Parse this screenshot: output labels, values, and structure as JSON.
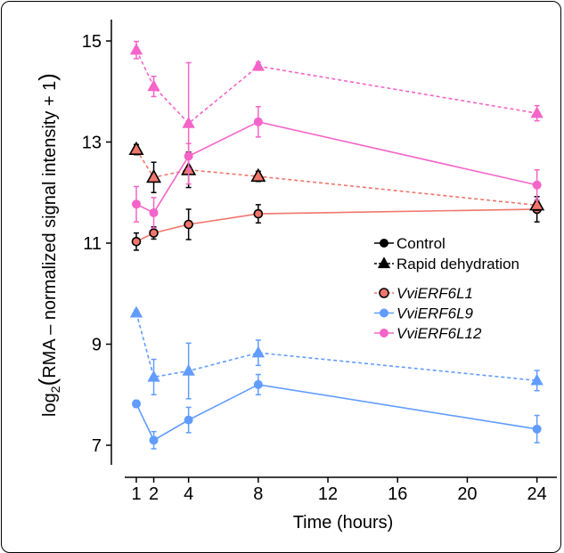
{
  "chart_data": {
    "type": "line",
    "xlabel": "Time (hours)",
    "ylabel_parts": {
      "log": "log",
      "sub": "2",
      "body": "RMA – normalized signal intensity + 1"
    },
    "xlim": [
      0,
      25
    ],
    "ylim": [
      6.6,
      15.3
    ],
    "x_ticks": [
      1,
      2,
      4,
      8,
      12,
      16,
      20,
      24
    ],
    "y_ticks": [
      7,
      9,
      11,
      13,
      15
    ],
    "x_tick_labels": [
      "1",
      "2",
      "4",
      "8",
      "12",
      "16",
      "20",
      "24"
    ],
    "y_tick_labels": [
      "7",
      "9",
      "11",
      "13",
      "15"
    ],
    "grid": false,
    "legend_position": "right-middle",
    "legend_treatments": [
      {
        "name": "Control",
        "marker": "circle",
        "linestyle": "solid"
      },
      {
        "name": "Rapid dehydration",
        "marker": "triangle",
        "linestyle": "dashed"
      }
    ],
    "legend_genes": [
      {
        "name": "VviERF6L1",
        "color": "#F0766C"
      },
      {
        "name": "VviERF6L9",
        "color": "#619CFF"
      },
      {
        "name": "VviERF6L12",
        "color": "#F564C8"
      }
    ],
    "x": [
      1,
      2,
      4,
      8,
      24
    ],
    "series": [
      {
        "gene": "VviERF6L1",
        "treatment": "Control",
        "color": "#F0766C",
        "marker": "circle",
        "dashed": false,
        "outlined": true,
        "values": [
          11.03,
          11.2,
          11.37,
          11.58,
          11.67
        ],
        "err": [
          0.17,
          0.12,
          0.3,
          0.18,
          0.25
        ]
      },
      {
        "gene": "VviERF6L1",
        "treatment": "Rapid dehydration",
        "color": "#F0766C",
        "marker": "triangle",
        "dashed": true,
        "outlined": true,
        "values": [
          12.85,
          12.3,
          12.45,
          12.32,
          11.75
        ],
        "err": [
          0.1,
          0.3,
          0.35,
          0.1,
          0.1
        ]
      },
      {
        "gene": "VviERF6L9",
        "treatment": "Control",
        "color": "#619CFF",
        "marker": "circle",
        "dashed": false,
        "outlined": false,
        "values": [
          7.82,
          7.1,
          7.5,
          8.2,
          7.32
        ],
        "err": [
          0.07,
          0.17,
          0.25,
          0.2,
          0.27
        ]
      },
      {
        "gene": "VviERF6L9",
        "treatment": "Rapid dehydration",
        "color": "#619CFF",
        "marker": "triangle",
        "dashed": true,
        "outlined": false,
        "values": [
          9.62,
          8.35,
          8.47,
          8.83,
          8.28
        ],
        "err": [
          0.05,
          0.35,
          0.55,
          0.25,
          0.2
        ]
      },
      {
        "gene": "VviERF6L12",
        "treatment": "Control",
        "color": "#F564C8",
        "marker": "circle",
        "dashed": false,
        "outlined": false,
        "values": [
          11.77,
          11.6,
          12.72,
          13.4,
          12.15
        ],
        "err": [
          0.35,
          0.3,
          0.25,
          0.3,
          0.3
        ]
      },
      {
        "gene": "VviERF6L12",
        "treatment": "Rapid dehydration",
        "color": "#F564C8",
        "marker": "triangle",
        "dashed": true,
        "outlined": false,
        "values": [
          14.82,
          14.1,
          13.37,
          14.5,
          13.57
        ],
        "err": [
          0.17,
          0.2,
          1.2,
          0.08,
          0.15
        ]
      }
    ]
  }
}
